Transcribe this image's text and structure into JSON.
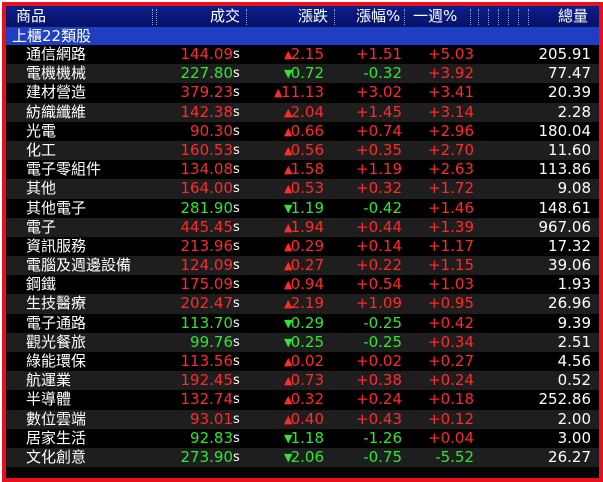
{
  "header": {
    "col_product": "商品",
    "col_price": "成交",
    "col_change": "漲跌",
    "col_pct": "漲幅%",
    "col_week": "一週%",
    "col_volume": "總量"
  },
  "group_title": "上櫃22類股",
  "colors": {
    "up": "#ff2a2a",
    "down": "#2ee82e",
    "header_bg": "#0a1f8c",
    "group_bg": "#1f3fc2",
    "border": "#e8101c"
  },
  "rows": [
    {
      "name": "通信網路",
      "price": "144.09",
      "flag": "s",
      "dir": "up",
      "change": "2.15",
      "pct": "+1.51",
      "week": "+5.03",
      "volume": "205.91"
    },
    {
      "name": "電機機械",
      "price": "227.80",
      "flag": "s",
      "dir": "down",
      "change": "0.72",
      "pct": "-0.32",
      "week": "+3.92",
      "volume": "77.47"
    },
    {
      "name": "建材營造",
      "price": "379.23",
      "flag": "s",
      "dir": "up",
      "change": "11.13",
      "pct": "+3.02",
      "week": "+3.41",
      "volume": "20.39"
    },
    {
      "name": "紡織纖維",
      "price": "142.38",
      "flag": "s",
      "dir": "up",
      "change": "2.04",
      "pct": "+1.45",
      "week": "+3.14",
      "volume": "2.28"
    },
    {
      "name": "光電",
      "price": "90.30",
      "flag": "s",
      "dir": "up",
      "change": "0.66",
      "pct": "+0.74",
      "week": "+2.96",
      "volume": "180.04"
    },
    {
      "name": "化工",
      "price": "160.53",
      "flag": "s",
      "dir": "up",
      "change": "0.56",
      "pct": "+0.35",
      "week": "+2.70",
      "volume": "11.60"
    },
    {
      "name": "電子零組件",
      "price": "134.08",
      "flag": "s",
      "dir": "up",
      "change": "1.58",
      "pct": "+1.19",
      "week": "+2.63",
      "volume": "113.86"
    },
    {
      "name": "其他",
      "price": "164.00",
      "flag": "s",
      "dir": "up",
      "change": "0.53",
      "pct": "+0.32",
      "week": "+1.72",
      "volume": "9.08"
    },
    {
      "name": "其他電子",
      "price": "281.90",
      "flag": "s",
      "dir": "down",
      "change": "1.19",
      "pct": "-0.42",
      "week": "+1.46",
      "volume": "148.61"
    },
    {
      "name": "電子",
      "price": "445.45",
      "flag": "s",
      "dir": "up",
      "change": "1.94",
      "pct": "+0.44",
      "week": "+1.39",
      "volume": "967.06"
    },
    {
      "name": "資訊服務",
      "price": "213.96",
      "flag": "s",
      "dir": "up",
      "change": "0.29",
      "pct": "+0.14",
      "week": "+1.17",
      "volume": "17.32"
    },
    {
      "name": "電腦及週邊設備",
      "price": "124.09",
      "flag": "s",
      "dir": "up",
      "change": "0.27",
      "pct": "+0.22",
      "week": "+1.15",
      "volume": "39.06"
    },
    {
      "name": "鋼鐵",
      "price": "175.09",
      "flag": "s",
      "dir": "up",
      "change": "0.94",
      "pct": "+0.54",
      "week": "+1.03",
      "volume": "1.93"
    },
    {
      "name": "生技醫療",
      "price": "202.47",
      "flag": "s",
      "dir": "up",
      "change": "2.19",
      "pct": "+1.09",
      "week": "+0.95",
      "volume": "26.96"
    },
    {
      "name": "電子通路",
      "price": "113.70",
      "flag": "s",
      "dir": "down",
      "change": "0.29",
      "pct": "-0.25",
      "week": "+0.42",
      "volume": "9.39"
    },
    {
      "name": "觀光餐旅",
      "price": "99.76",
      "flag": "s",
      "dir": "down",
      "change": "0.25",
      "pct": "-0.25",
      "week": "+0.34",
      "volume": "2.51"
    },
    {
      "name": "綠能環保",
      "price": "113.56",
      "flag": "s",
      "dir": "up",
      "change": "0.02",
      "pct": "+0.02",
      "week": "+0.27",
      "volume": "4.56"
    },
    {
      "name": "航運業",
      "price": "192.45",
      "flag": "s",
      "dir": "up",
      "change": "0.73",
      "pct": "+0.38",
      "week": "+0.24",
      "volume": "0.52"
    },
    {
      "name": "半導體",
      "price": "132.74",
      "flag": "s",
      "dir": "up",
      "change": "0.32",
      "pct": "+0.24",
      "week": "+0.18",
      "volume": "252.86"
    },
    {
      "name": "數位雲端",
      "price": "93.01",
      "flag": "s",
      "dir": "up",
      "change": "0.40",
      "pct": "+0.43",
      "week": "+0.12",
      "volume": "2.00"
    },
    {
      "name": "居家生活",
      "price": "92.83",
      "flag": "s",
      "dir": "down",
      "change": "1.18",
      "pct": "-1.26",
      "week": "+0.04",
      "volume": "3.00"
    },
    {
      "name": "文化創意",
      "price": "273.90",
      "flag": "s",
      "dir": "down",
      "change": "2.06",
      "pct": "-0.75",
      "week": "-5.52",
      "volume": "26.27"
    }
  ]
}
